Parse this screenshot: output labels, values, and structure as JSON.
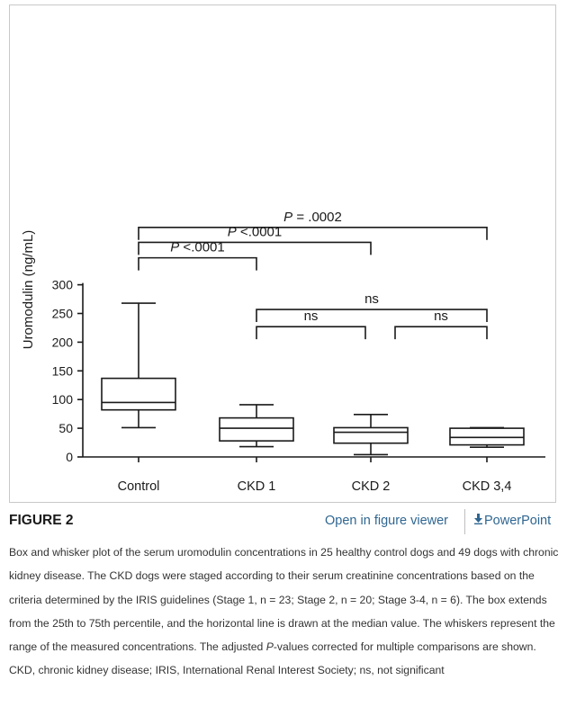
{
  "figure": {
    "label": "FIGURE 2",
    "open_viewer": "Open in figure viewer",
    "powerpoint": "PowerPoint",
    "download_icon": "download-arrow-icon",
    "caption": {
      "part1": "Box and whisker plot of the serum uromodulin concentrations in 25 healthy control dogs and 49 dogs with chronic kidney disease. The CKD dogs were staged according to their serum creatinine concentrations based on the criteria determined by the IRIS guidelines (Stage 1, n = 23; Stage 2, n = 20; Stage 3-4, n = 6). The box extends from the 25th to 75th percentile, and the horizontal line is drawn at the median value. The whiskers represent the range of the measured concentrations. The adjusted ",
      "italic": "P",
      "part2": "-values corrected for multiple comparisons are shown. CKD, chronic kidney disease; IRIS, International Renal Interest Society; ns, not significant"
    },
    "colors": {
      "link": "#2f6691",
      "line": "#1a1a1a"
    }
  },
  "chart_data": {
    "type": "box",
    "ylabel": "Uromodulin (ng/mL)",
    "xlabel": "",
    "ylim": [
      0,
      300
    ],
    "yticks": [
      0,
      50,
      100,
      150,
      200,
      250,
      300
    ],
    "categories": [
      "Control",
      "CKD 1",
      "CKD 2",
      "CKD 3,4"
    ],
    "boxes": [
      {
        "min": 51,
        "q1": 82,
        "median": 95,
        "q3": 137,
        "max": 268
      },
      {
        "min": 18,
        "q1": 28,
        "median": 50,
        "q3": 68,
        "max": 91
      },
      {
        "min": 4,
        "q1": 24,
        "median": 43,
        "q3": 51,
        "max": 74
      },
      {
        "min": 17,
        "q1": 21,
        "median": 34,
        "q3": 50,
        "max": 51
      }
    ],
    "comparisons": [
      {
        "from": 0,
        "to": 3,
        "label": "P = .0002",
        "italic_p": true,
        "level": 400
      },
      {
        "from": 0,
        "to": 2,
        "label": "P <.0001",
        "italic_p": true,
        "level": 374
      },
      {
        "from": 0,
        "to": 1,
        "label": "P <.0001",
        "italic_p": true,
        "level": 347
      },
      {
        "from": 1,
        "to": 3,
        "label": "ns",
        "italic_p": false,
        "level": 257
      },
      {
        "from": 1,
        "to": 2,
        "label": "ns",
        "italic_p": false,
        "level": 227
      },
      {
        "from": 2,
        "to": 3,
        "label": "ns",
        "italic_p": false,
        "level": 227
      }
    ]
  }
}
